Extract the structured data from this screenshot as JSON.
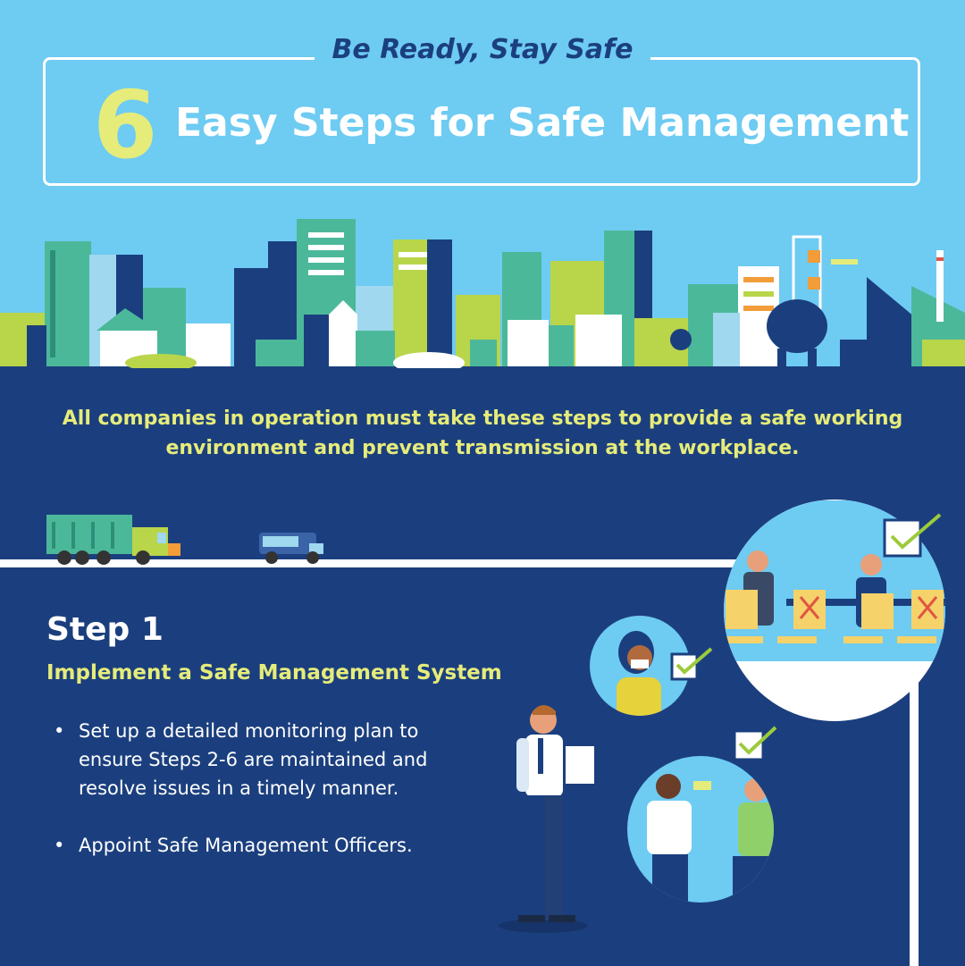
{
  "header": {
    "tagline": "Be Ready, Stay Safe",
    "number": "6",
    "title": "Easy Steps for Safe Management"
  },
  "intro": "All companies in operation must take these steps to provide a safe working environment and prevent transmission at the workplace.",
  "step": {
    "title": "Step 1",
    "subtitle": "Implement a Safe Management System",
    "bullets": [
      "Set up a detailed monitoring plan to ensure Steps 2-6 are maintained and resolve issues in a timely manner.",
      "Appoint Safe Management Officers."
    ]
  },
  "colors": {
    "sky": "#6ecbf2",
    "navy": "#1b3f7e",
    "accent_yellow": "#e6ec7a",
    "white": "#ffffff"
  },
  "icons": [
    "city-skyline-illustration",
    "truck-icon",
    "car-icon",
    "check-icon",
    "meeting-illustration",
    "mask-person-illustration",
    "temperature-check-illustration",
    "officer-with-clipboard-illustration"
  ]
}
